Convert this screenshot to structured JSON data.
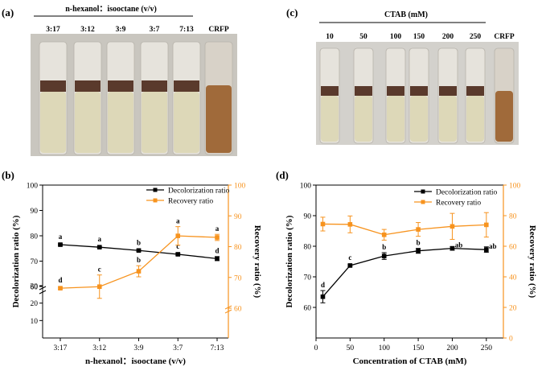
{
  "panels": {
    "a": {
      "label": "(a)",
      "header": "n-hexanol：isooctane (v/v)",
      "tube_labels": [
        "3:17",
        "3:12",
        "3:9",
        "3:7",
        "7:13",
        "CRFP"
      ]
    },
    "c": {
      "label": "(c)",
      "header": "CTAB (mM)",
      "tube_labels": [
        "10",
        "50",
        "100",
        "150",
        "200",
        "250",
        "CRFP"
      ]
    },
    "b": {
      "label": "(b)"
    },
    "d": {
      "label": "(d)"
    }
  },
  "colors": {
    "decolorization": "#000000",
    "recovery": "#f7931e",
    "photo_bg": "#c9c6bf",
    "tube_liquid": "#ddd8b8",
    "tube_band": "#5a3a2c",
    "crfp": "#a06a3a"
  },
  "chart_data": [
    {
      "panel": "b",
      "type": "line",
      "categories": [
        "3:17",
        "3:12",
        "3:9",
        "3:7",
        "7:13"
      ],
      "xlabel": "n-hexanol：isooctane (v/v)",
      "ylabel": "Decolorization ratio (%)",
      "y2label": "Recovery ratio (%)",
      "ylim": [
        0,
        100
      ],
      "yticks": [
        10,
        20,
        30,
        60,
        70,
        80,
        90,
        100
      ],
      "ybreak": [
        30,
        60
      ],
      "y2lim": [
        0,
        100
      ],
      "y2ticks": [
        60,
        70,
        80,
        90,
        100
      ],
      "y2break": [
        0,
        60
      ],
      "legend_position": "top-right",
      "series": [
        {
          "name": "Decolorization ratio",
          "axis": "left",
          "marker": "square",
          "values": [
            76.5,
            75.5,
            74.2,
            72.7,
            71.0
          ],
          "errors": [
            0.3,
            0.3,
            0.4,
            0.4,
            0.8
          ],
          "letters": [
            "a",
            "a",
            "b",
            "c",
            "d"
          ]
        },
        {
          "name": "Recovery ratio",
          "axis": "right",
          "marker": "square",
          "values": [
            66.5,
            67.0,
            72.0,
            83.5,
            83.0
          ],
          "errors": [
            0.3,
            3.8,
            1.8,
            3.0,
            1.0
          ],
          "letters": [
            "d",
            "c",
            "b",
            "a",
            "a"
          ]
        }
      ]
    },
    {
      "panel": "d",
      "type": "line",
      "x": [
        10,
        50,
        100,
        150,
        200,
        250
      ],
      "xlim": [
        0,
        275
      ],
      "xticks": [
        0,
        50,
        100,
        150,
        200,
        250
      ],
      "xlabel": "Concentration of CTAB (mM)",
      "ylabel": "Decolorization ratio (%)",
      "y2label": "Recovery ratio (%)",
      "ylim": [
        50,
        100
      ],
      "yticks": [
        60,
        70,
        80,
        90,
        100
      ],
      "y2lim": [
        0,
        100
      ],
      "y2ticks": [
        0,
        20,
        40,
        60,
        80,
        100
      ],
      "legend_position": "top-right",
      "series": [
        {
          "name": "Decolorization ratio",
          "axis": "left",
          "marker": "square",
          "values": [
            63.5,
            73.7,
            76.8,
            78.5,
            79.3,
            78.9
          ],
          "errors": [
            2.0,
            0.3,
            1.1,
            0.8,
            0.6,
            0.9
          ],
          "letters": [
            "d",
            "c",
            "b",
            "b",
            "ab",
            "ab"
          ]
        },
        {
          "name": "Recovery ratio",
          "axis": "right",
          "marker": "square",
          "values": [
            74.5,
            74.3,
            67.5,
            71.0,
            73.0,
            74.0
          ],
          "errors": [
            4.5,
            5.5,
            3.5,
            4.5,
            8.5,
            8.0
          ],
          "letters": []
        }
      ]
    }
  ]
}
